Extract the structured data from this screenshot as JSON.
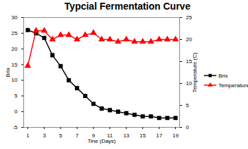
{
  "chart_data": {
    "type": "line",
    "title": "Typcial Fermentation Curve",
    "x_label": "Tine (Days)",
    "y_label": "Brix",
    "y2_label": "Temperature (C)",
    "x": [
      1,
      2,
      3,
      4,
      5,
      6,
      7,
      8,
      9,
      10,
      11,
      12,
      13,
      14,
      15,
      16,
      17,
      18,
      19
    ],
    "series": [
      {
        "name": "Brix",
        "color": "#000000",
        "marker": "square",
        "values": [
          26,
          25,
          23.5,
          18,
          14.5,
          10,
          7.5,
          5,
          2.5,
          1,
          0.5,
          0,
          -0.5,
          -1,
          -1.5,
          -1.5,
          -2,
          -2,
          -2
        ]
      },
      {
        "name": "Temperature",
        "color": "#ff0000",
        "marker": "triangle",
        "axis": "y2",
        "values": [
          14,
          22,
          22,
          20,
          21,
          21,
          20,
          21,
          21.5,
          20,
          20,
          19.5,
          20,
          19.5,
          19.5,
          19.5,
          20,
          20,
          20
        ]
      }
    ],
    "xlim": [
      0.5,
      19.5
    ],
    "xticks": [
      1,
      3,
      5,
      7,
      9,
      11,
      13,
      15,
      17,
      19
    ],
    "ylim": [
      -5,
      30
    ],
    "yticks": [
      -5,
      0,
      5,
      10,
      15,
      20,
      25,
      30
    ],
    "y2lim": [
      0,
      25
    ],
    "y2ticks": [
      0,
      5,
      10,
      15,
      20,
      25
    ],
    "grid": false,
    "legend": "right"
  }
}
